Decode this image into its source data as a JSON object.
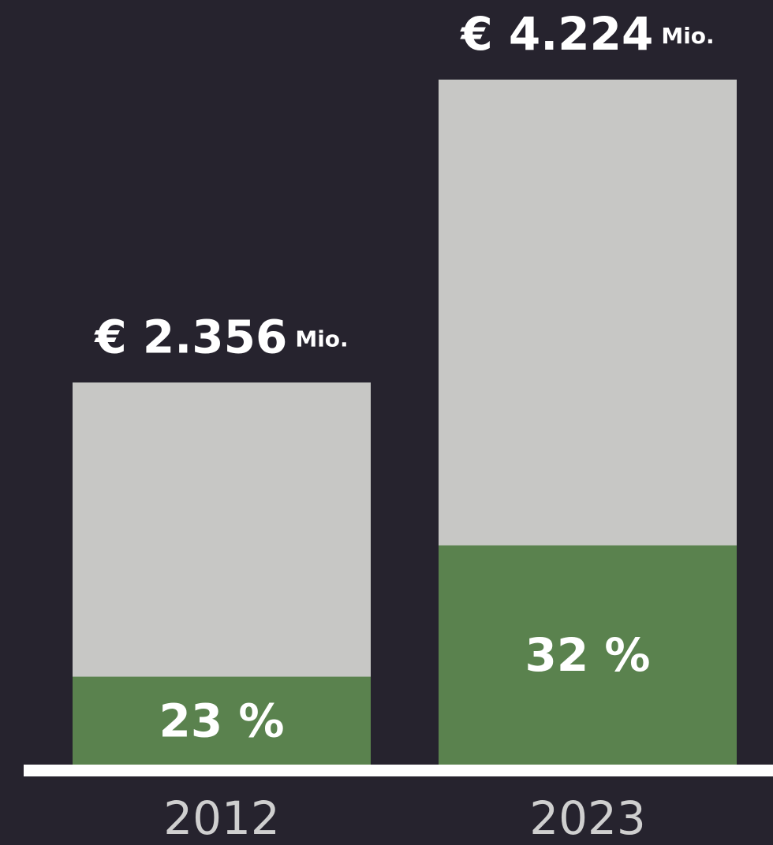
{
  "chart_data": {
    "type": "bar",
    "categories": [
      "2012",
      "2023"
    ],
    "values": [
      2356,
      4224
    ],
    "value_labels": [
      "€ 2.356",
      "€ 4.224"
    ],
    "value_unit": "Mio.",
    "color": "#c7c7c5",
    "shares": [
      23,
      32
    ],
    "share_labels": [
      "23 %",
      "32 %"
    ],
    "share_color": "#5a824e"
  }
}
